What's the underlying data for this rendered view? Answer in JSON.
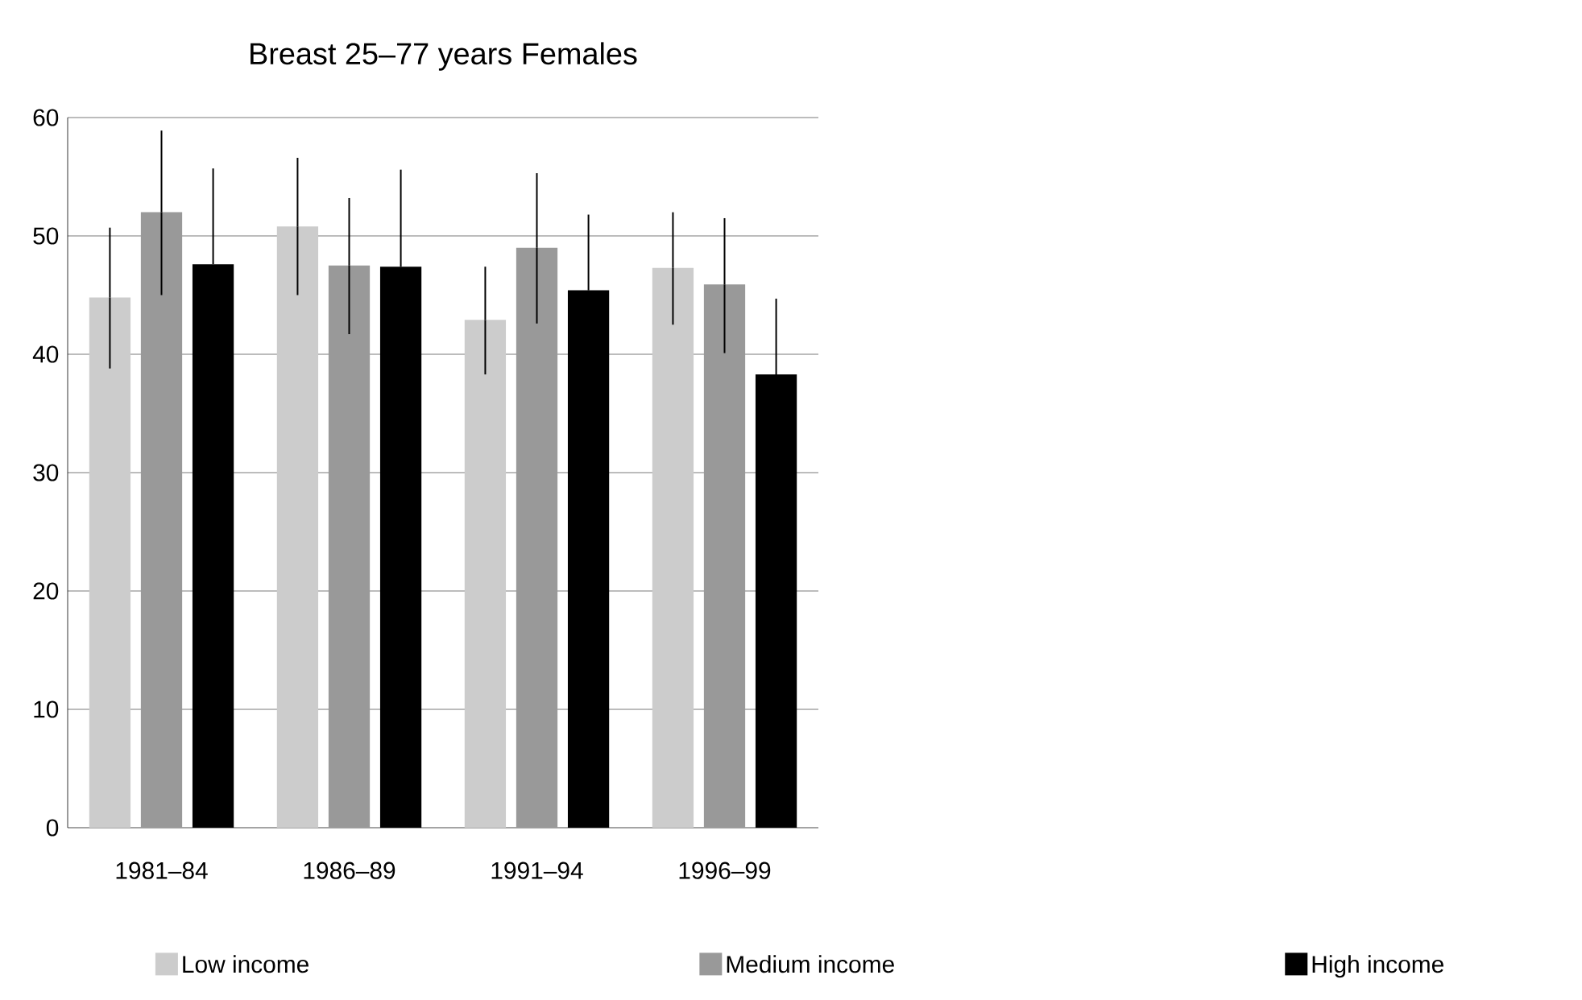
{
  "chart_data": {
    "type": "bar",
    "title": "Breast   25–77 years   Females",
    "categories": [
      "1981–84",
      "1986–89",
      "1991–94",
      "1996–99"
    ],
    "series": [
      {
        "name": "Low income",
        "color": "#cccccc",
        "values": [
          44.8,
          50.8,
          42.9,
          47.3
        ],
        "errors": [
          [
            38.8,
            50.7
          ],
          [
            45.0,
            56.6
          ],
          [
            38.3,
            47.4
          ],
          [
            42.5,
            52.0
          ]
        ]
      },
      {
        "name": "Medium income",
        "color": "#999999",
        "values": [
          52.0,
          47.5,
          49.0,
          45.9
        ],
        "errors": [
          [
            45.0,
            58.9
          ],
          [
            41.7,
            53.2
          ],
          [
            42.6,
            55.3
          ],
          [
            40.1,
            51.5
          ]
        ]
      },
      {
        "name": "High income",
        "color": "#000000",
        "values": [
          47.6,
          47.4,
          45.4,
          38.3
        ],
        "errors": [
          [
            47.6,
            55.7
          ],
          [
            47.4,
            55.6
          ],
          [
            45.4,
            51.8
          ],
          [
            38.3,
            44.7
          ]
        ]
      }
    ],
    "ylim": [
      0,
      60
    ],
    "yticks": [
      0,
      10,
      20,
      30,
      40,
      50,
      60
    ],
    "grid": "y",
    "legend": "bottom"
  }
}
